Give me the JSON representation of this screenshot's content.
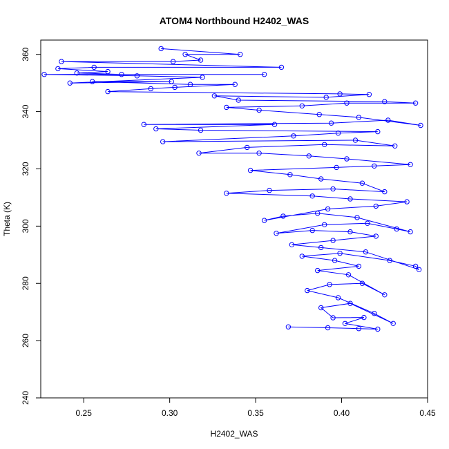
{
  "chart_data": {
    "type": "line",
    "title": "ATOM4 Northbound H2402_WAS",
    "xlabel": "H2402_WAS",
    "ylabel": "Theta (K)",
    "xlim": [
      0.225,
      0.45
    ],
    "ylim": [
      240,
      365
    ],
    "x_ticks": [
      0.25,
      0.3,
      0.35,
      0.4,
      0.45
    ],
    "x_tick_labels": [
      "0.25",
      "0.30",
      "0.35",
      "0.40",
      "0.45"
    ],
    "y_ticks": [
      240,
      260,
      280,
      300,
      320,
      340,
      360
    ],
    "y_tick_labels": [
      "240",
      "260",
      "280",
      "300",
      "320",
      "340",
      "360"
    ],
    "grid": false,
    "marker": "open-circle",
    "series": [
      {
        "color": "#0000ff",
        "points": [
          [
            0.369,
            264.8
          ],
          [
            0.392,
            264.5
          ],
          [
            0.41,
            264.2
          ],
          [
            0.421,
            264.0
          ],
          [
            0.402,
            266.0
          ],
          [
            0.413,
            268.1
          ],
          [
            0.395,
            268.0
          ],
          [
            0.388,
            271.5
          ],
          [
            0.405,
            273.0
          ],
          [
            0.43,
            266.0
          ],
          [
            0.419,
            269.5
          ],
          [
            0.398,
            275.0
          ],
          [
            0.38,
            277.5
          ],
          [
            0.393,
            279.6
          ],
          [
            0.412,
            280.0
          ],
          [
            0.425,
            276.0
          ],
          [
            0.404,
            283.0
          ],
          [
            0.386,
            284.5
          ],
          [
            0.41,
            286.0
          ],
          [
            0.396,
            288.0
          ],
          [
            0.377,
            289.5
          ],
          [
            0.399,
            290.5
          ],
          [
            0.428,
            288.0
          ],
          [
            0.443,
            286.0
          ],
          [
            0.445,
            284.8
          ],
          [
            0.414,
            291.0
          ],
          [
            0.388,
            292.5
          ],
          [
            0.371,
            293.5
          ],
          [
            0.395,
            295.0
          ],
          [
            0.42,
            296.5
          ],
          [
            0.405,
            298.0
          ],
          [
            0.383,
            298.5
          ],
          [
            0.362,
            297.5
          ],
          [
            0.39,
            300.5
          ],
          [
            0.415,
            301.0
          ],
          [
            0.432,
            299.0
          ],
          [
            0.44,
            298.0
          ],
          [
            0.409,
            303.0
          ],
          [
            0.386,
            304.5
          ],
          [
            0.366,
            303.5
          ],
          [
            0.355,
            302.0
          ],
          [
            0.392,
            306.0
          ],
          [
            0.42,
            307.0
          ],
          [
            0.438,
            308.5
          ],
          [
            0.405,
            309.5
          ],
          [
            0.383,
            310.5
          ],
          [
            0.333,
            311.5
          ],
          [
            0.358,
            312.5
          ],
          [
            0.395,
            313.0
          ],
          [
            0.425,
            312.0
          ],
          [
            0.412,
            315.0
          ],
          [
            0.388,
            316.5
          ],
          [
            0.37,
            318.0
          ],
          [
            0.347,
            319.5
          ],
          [
            0.397,
            320.5
          ],
          [
            0.419,
            321.0
          ],
          [
            0.44,
            321.5
          ],
          [
            0.403,
            323.5
          ],
          [
            0.381,
            324.5
          ],
          [
            0.352,
            325.5
          ],
          [
            0.317,
            325.5
          ],
          [
            0.345,
            327.5
          ],
          [
            0.39,
            328.5
          ],
          [
            0.431,
            328.0
          ],
          [
            0.408,
            330.0
          ],
          [
            0.296,
            329.5
          ],
          [
            0.372,
            331.5
          ],
          [
            0.398,
            332.5
          ],
          [
            0.421,
            333.0
          ],
          [
            0.318,
            333.5
          ],
          [
            0.292,
            334.0
          ],
          [
            0.361,
            335.5
          ],
          [
            0.285,
            335.5
          ],
          [
            0.394,
            336.0
          ],
          [
            0.427,
            337.0
          ],
          [
            0.446,
            335.2
          ],
          [
            0.41,
            338.0
          ],
          [
            0.387,
            339.0
          ],
          [
            0.352,
            340.5
          ],
          [
            0.333,
            341.5
          ],
          [
            0.377,
            342.0
          ],
          [
            0.403,
            343.0
          ],
          [
            0.443,
            343.0
          ],
          [
            0.425,
            343.5
          ],
          [
            0.34,
            344.0
          ],
          [
            0.326,
            345.5
          ],
          [
            0.391,
            345.0
          ],
          [
            0.416,
            346.0
          ],
          [
            0.399,
            346.2
          ],
          [
            0.264,
            347.0
          ],
          [
            0.289,
            348.0
          ],
          [
            0.303,
            348.5
          ],
          [
            0.338,
            349.5
          ],
          [
            0.312,
            349.5
          ],
          [
            0.255,
            350.5
          ],
          [
            0.301,
            350.5
          ],
          [
            0.242,
            350.0
          ],
          [
            0.319,
            352.0
          ],
          [
            0.281,
            352.5
          ],
          [
            0.227,
            353.0
          ],
          [
            0.355,
            353.0
          ],
          [
            0.272,
            353.0
          ],
          [
            0.246,
            353.5
          ],
          [
            0.264,
            354.0
          ],
          [
            0.235,
            355.0
          ],
          [
            0.256,
            355.5
          ],
          [
            0.365,
            355.5
          ],
          [
            0.237,
            357.5
          ],
          [
            0.302,
            357.5
          ],
          [
            0.318,
            358.0
          ],
          [
            0.309,
            360.0
          ],
          [
            0.341,
            360.0
          ],
          [
            0.295,
            362.0
          ]
        ]
      }
    ]
  }
}
